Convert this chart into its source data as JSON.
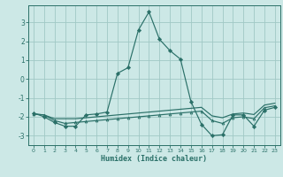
{
  "xlabel": "Humidex (Indice chaleur)",
  "xlim": [
    -0.5,
    23.5
  ],
  "ylim": [
    -3.5,
    3.9
  ],
  "yticks": [
    -3,
    -2,
    -1,
    0,
    1,
    2,
    3
  ],
  "xticks": [
    0,
    1,
    2,
    3,
    4,
    5,
    6,
    7,
    8,
    9,
    10,
    11,
    12,
    13,
    14,
    15,
    16,
    17,
    18,
    19,
    20,
    21,
    22,
    23
  ],
  "bg_color": "#cce8e6",
  "grid_color": "#a0c8c5",
  "line_color": "#2a7068",
  "line1_y": [
    -1.8,
    -2.0,
    -2.3,
    -2.5,
    -2.5,
    -1.9,
    -1.85,
    -1.75,
    0.3,
    0.6,
    2.6,
    3.55,
    2.1,
    1.5,
    1.05,
    -1.2,
    -2.4,
    -3.0,
    -2.95,
    -1.9,
    -1.9,
    -2.5,
    -1.65,
    -1.5
  ],
  "line2_y": [
    -1.85,
    -1.9,
    -2.1,
    -2.1,
    -2.1,
    -2.05,
    -2.0,
    -1.95,
    -1.9,
    -1.85,
    -1.8,
    -1.75,
    -1.7,
    -1.65,
    -1.6,
    -1.55,
    -1.5,
    -1.95,
    -2.05,
    -1.85,
    -1.8,
    -1.88,
    -1.38,
    -1.28
  ],
  "line3_y": [
    -1.85,
    -1.9,
    -2.2,
    -2.35,
    -2.3,
    -2.25,
    -2.2,
    -2.15,
    -2.1,
    -2.05,
    -2.0,
    -1.95,
    -1.9,
    -1.85,
    -1.8,
    -1.75,
    -1.7,
    -2.2,
    -2.35,
    -2.05,
    -2.0,
    -2.1,
    -1.52,
    -1.42
  ]
}
